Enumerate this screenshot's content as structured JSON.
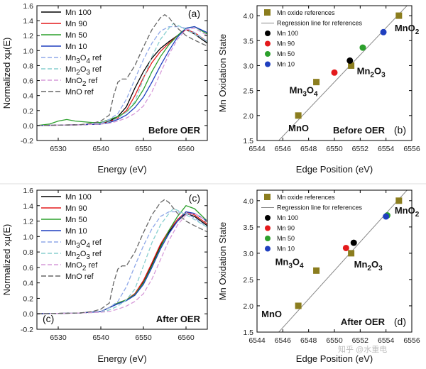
{
  "figure": {
    "watermark": "知乎 @水重电"
  },
  "chart_data": [
    {
      "id": "a",
      "type": "line",
      "panel_label": "(a)",
      "corner_label": "Before OER",
      "xlabel": "Energy (eV)",
      "ylabel": "Normalized xμ(E)",
      "xlim": [
        6525,
        6565
      ],
      "ylim": [
        -0.2,
        1.6
      ],
      "xticks": [
        "6530",
        "6540",
        "6550",
        "6560"
      ],
      "xtick_values": [
        6530,
        6540,
        6550,
        6560
      ],
      "yticks": [
        "-0.2",
        "0.0",
        "0.2",
        "0.4",
        "0.6",
        "0.8",
        "1.0",
        "1.2",
        "1.4",
        "1.6"
      ],
      "ytick_values": [
        -0.2,
        0,
        0.2,
        0.4,
        0.6,
        0.8,
        1.0,
        1.2,
        1.4,
        1.6
      ],
      "legend_position": "top-left",
      "series": [
        {
          "name": "Mn 100",
          "color": "#000000",
          "dash": "",
          "x": [
            6525,
            6535,
            6540,
            6542,
            6544,
            6546,
            6548,
            6550,
            6552,
            6554,
            6556,
            6558,
            6559,
            6560,
            6562,
            6565
          ],
          "y": [
            0,
            0.01,
            0.02,
            0.06,
            0.12,
            0.25,
            0.5,
            0.72,
            0.9,
            1.03,
            1.12,
            1.2,
            1.25,
            1.28,
            1.22,
            1.1
          ]
        },
        {
          "name": "Mn 90",
          "color": "#e41a1c",
          "dash": "",
          "x": [
            6525,
            6535,
            6540,
            6542,
            6544,
            6546,
            6548,
            6550,
            6552,
            6554,
            6556,
            6558,
            6559,
            6560,
            6562,
            6565
          ],
          "y": [
            0,
            0.01,
            0.02,
            0.05,
            0.1,
            0.2,
            0.4,
            0.64,
            0.84,
            0.99,
            1.1,
            1.2,
            1.24,
            1.28,
            1.24,
            1.12
          ]
        },
        {
          "name": "Mn 50",
          "color": "#2ca02c",
          "dash": "",
          "x": [
            6525,
            6528,
            6530,
            6532,
            6534,
            6538,
            6540,
            6542,
            6544,
            6546,
            6548,
            6550,
            6552,
            6554,
            6556,
            6558,
            6560,
            6562,
            6565
          ],
          "y": [
            0,
            0.02,
            0.06,
            0.08,
            0.06,
            0.04,
            0.04,
            0.08,
            0.12,
            0.18,
            0.3,
            0.48,
            0.72,
            0.92,
            1.08,
            1.2,
            1.3,
            1.32,
            1.22
          ]
        },
        {
          "name": "Mn 10",
          "color": "#1f3fbf",
          "dash": "",
          "x": [
            6525,
            6535,
            6540,
            6542,
            6544,
            6546,
            6548,
            6550,
            6552,
            6554,
            6556,
            6558,
            6560,
            6562,
            6565
          ],
          "y": [
            0,
            0.01,
            0.02,
            0.04,
            0.08,
            0.14,
            0.24,
            0.38,
            0.58,
            0.8,
            1.0,
            1.18,
            1.3,
            1.32,
            1.24
          ]
        },
        {
          "name": "Mn3O4 ref",
          "color": "#8fa8e8",
          "dash": "6,3",
          "x": [
            6525,
            6535,
            6540,
            6542,
            6544,
            6546,
            6548,
            6550,
            6552,
            6554,
            6556,
            6558,
            6560,
            6562,
            6565
          ],
          "y": [
            0,
            0.01,
            0.03,
            0.08,
            0.16,
            0.35,
            0.62,
            0.88,
            1.1,
            1.26,
            1.32,
            1.32,
            1.3,
            1.24,
            1.12
          ]
        },
        {
          "name": "Mn2O3 ref",
          "color": "#88cfcf",
          "dash": "6,3",
          "x": [
            6525,
            6535,
            6540,
            6542,
            6544,
            6546,
            6548,
            6550,
            6552,
            6554,
            6556,
            6557,
            6558,
            6560,
            6562,
            6565
          ],
          "y": [
            0,
            0.01,
            0.02,
            0.05,
            0.1,
            0.18,
            0.32,
            0.62,
            0.92,
            1.15,
            1.3,
            1.36,
            1.34,
            1.28,
            1.22,
            1.12
          ]
        },
        {
          "name": "MnO2 ref",
          "color": "#d69ad9",
          "dash": "6,3",
          "x": [
            6525,
            6535,
            6540,
            6542,
            6544,
            6546,
            6548,
            6550,
            6552,
            6554,
            6556,
            6558,
            6560,
            6562,
            6565
          ],
          "y": [
            0,
            0.01,
            0.02,
            0.03,
            0.06,
            0.1,
            0.16,
            0.26,
            0.45,
            0.7,
            0.95,
            1.15,
            1.28,
            1.3,
            1.2
          ]
        },
        {
          "name": "MnO ref",
          "color": "#666666",
          "dash": "7,3",
          "x": [
            6525,
            6535,
            6538,
            6540,
            6542,
            6543,
            6544,
            6545,
            6546,
            6548,
            6550,
            6552,
            6554,
            6555,
            6556,
            6558,
            6560,
            6562,
            6565
          ],
          "y": [
            0,
            0.01,
            0.03,
            0.06,
            0.14,
            0.4,
            0.58,
            0.62,
            0.62,
            0.8,
            1.05,
            1.28,
            1.44,
            1.48,
            1.44,
            1.3,
            1.2,
            1.14,
            1.06
          ]
        }
      ]
    },
    {
      "id": "b",
      "type": "scatter",
      "panel_label": "(b)",
      "corner_label": "Before OER",
      "xlabel": "Edge Position (eV)",
      "ylabel": "Mn Oxidation State",
      "xlim": [
        6544,
        6556
      ],
      "ylim": [
        1.5,
        4.2
      ],
      "xticks": [
        "6544",
        "6546",
        "6548",
        "6550",
        "6552",
        "6554",
        "6556"
      ],
      "xtick_values": [
        6544,
        6546,
        6548,
        6550,
        6552,
        6554,
        6556
      ],
      "yticks": [
        "1.5",
        "2.0",
        "2.5",
        "3.0",
        "3.5",
        "4.0"
      ],
      "ytick_values": [
        1.5,
        2.0,
        2.5,
        3.0,
        3.5,
        4.0
      ],
      "legend_position": "top-left",
      "legend": [
        "Mn oxide references",
        "Regression line for references",
        "Mn 100",
        "Mn 90",
        "Mn 50",
        "Mn 10"
      ],
      "regression_line": {
        "x": [
          6545.5,
          6556
        ],
        "y": [
          1.45,
          4.3
        ]
      },
      "references": [
        {
          "name": "MnO",
          "x": 6547.2,
          "y": 2.0,
          "label": "MnO"
        },
        {
          "name": "Mn3O4",
          "x": 6548.6,
          "y": 2.67,
          "label": "Mn3O4"
        },
        {
          "name": "Mn2O3",
          "x": 6551.3,
          "y": 3.0,
          "label": "Mn2O3"
        },
        {
          "name": "MnO2",
          "x": 6555.0,
          "y": 4.0,
          "label": "MnO2"
        }
      ],
      "samples": [
        {
          "name": "Mn 100",
          "x": 6551.2,
          "y": 3.1,
          "color": "#000000"
        },
        {
          "name": "Mn 90",
          "x": 6550.0,
          "y": 2.86,
          "color": "#e41a1c"
        },
        {
          "name": "Mn 50",
          "x": 6552.2,
          "y": 3.36,
          "color": "#2ca02c"
        },
        {
          "name": "Mn 10",
          "x": 6553.8,
          "y": 3.67,
          "color": "#1f3fbf"
        }
      ],
      "ref_color": "#8b7d1e"
    },
    {
      "id": "c",
      "type": "line",
      "panel_label": "(c)",
      "corner_label": "After OER",
      "xlabel": "Energy (eV)",
      "ylabel": "Normalized xμ(E)",
      "xlim": [
        6525,
        6565
      ],
      "ylim": [
        -0.2,
        1.6
      ],
      "xticks": [
        "6530",
        "6540",
        "6550",
        "6560"
      ],
      "xtick_values": [
        6530,
        6540,
        6550,
        6560
      ],
      "yticks": [
        "-0.2",
        "0.0",
        "0.2",
        "0.4",
        "0.6",
        "0.8",
        "1.0",
        "1.2",
        "1.4",
        "1.6"
      ],
      "ytick_values": [
        -0.2,
        0,
        0.2,
        0.4,
        0.6,
        0.8,
        1.0,
        1.2,
        1.4,
        1.6
      ],
      "legend_position": "top-left",
      "series": [
        {
          "name": "Mn 100",
          "color": "#000000",
          "dash": "",
          "x": [
            6525,
            6535,
            6540,
            6542,
            6544,
            6546,
            6548,
            6550,
            6552,
            6554,
            6556,
            6558,
            6560,
            6562,
            6565
          ],
          "y": [
            0,
            0.01,
            0.03,
            0.08,
            0.14,
            0.18,
            0.26,
            0.42,
            0.64,
            0.88,
            1.06,
            1.2,
            1.3,
            1.26,
            1.14
          ]
        },
        {
          "name": "Mn 90",
          "color": "#e41a1c",
          "dash": "",
          "x": [
            6525,
            6535,
            6540,
            6542,
            6544,
            6546,
            6548,
            6550,
            6552,
            6554,
            6556,
            6558,
            6560,
            6562,
            6565
          ],
          "y": [
            0,
            0.01,
            0.03,
            0.08,
            0.14,
            0.18,
            0.26,
            0.43,
            0.66,
            0.9,
            1.08,
            1.22,
            1.32,
            1.28,
            1.16
          ]
        },
        {
          "name": "Mn 50",
          "color": "#2ca02c",
          "dash": "",
          "x": [
            6525,
            6535,
            6540,
            6542,
            6544,
            6546,
            6548,
            6550,
            6552,
            6554,
            6556,
            6558,
            6560,
            6562,
            6565
          ],
          "y": [
            0,
            0.01,
            0.03,
            0.08,
            0.14,
            0.18,
            0.25,
            0.4,
            0.62,
            0.86,
            1.08,
            1.26,
            1.4,
            1.36,
            1.2
          ]
        },
        {
          "name": "Mn 10",
          "color": "#1f3fbf",
          "dash": "",
          "x": [
            6525,
            6535,
            6540,
            6542,
            6544,
            6546,
            6548,
            6550,
            6552,
            6554,
            6556,
            6558,
            6560,
            6562,
            6565
          ],
          "y": [
            0,
            0.01,
            0.03,
            0.08,
            0.13,
            0.17,
            0.24,
            0.38,
            0.6,
            0.84,
            1.04,
            1.2,
            1.32,
            1.3,
            1.2
          ]
        },
        {
          "name": "Mn3O4 ref",
          "color": "#8fa8e8",
          "dash": "6,3",
          "x": [
            6525,
            6535,
            6540,
            6542,
            6544,
            6546,
            6548,
            6550,
            6552,
            6554,
            6556,
            6558,
            6560,
            6562,
            6565
          ],
          "y": [
            0,
            0.01,
            0.03,
            0.08,
            0.16,
            0.35,
            0.62,
            0.88,
            1.1,
            1.26,
            1.32,
            1.32,
            1.3,
            1.24,
            1.12
          ]
        },
        {
          "name": "Mn2O3 ref",
          "color": "#88cfcf",
          "dash": "6,3",
          "x": [
            6525,
            6535,
            6540,
            6542,
            6544,
            6546,
            6548,
            6550,
            6552,
            6554,
            6556,
            6557,
            6558,
            6560,
            6562,
            6565
          ],
          "y": [
            0,
            0.01,
            0.02,
            0.05,
            0.1,
            0.18,
            0.32,
            0.62,
            0.92,
            1.15,
            1.3,
            1.36,
            1.34,
            1.28,
            1.22,
            1.12
          ]
        },
        {
          "name": "MnO2 ref",
          "color": "#d69ad9",
          "dash": "6,3",
          "x": [
            6525,
            6535,
            6540,
            6542,
            6544,
            6546,
            6548,
            6550,
            6552,
            6554,
            6556,
            6558,
            6560,
            6562,
            6565
          ],
          "y": [
            0,
            0.01,
            0.02,
            0.03,
            0.06,
            0.1,
            0.16,
            0.26,
            0.45,
            0.7,
            0.95,
            1.15,
            1.28,
            1.3,
            1.2
          ]
        },
        {
          "name": "MnO ref",
          "color": "#666666",
          "dash": "7,3",
          "x": [
            6525,
            6535,
            6538,
            6540,
            6542,
            6543,
            6544,
            6545,
            6546,
            6548,
            6550,
            6552,
            6554,
            6555,
            6556,
            6558,
            6560,
            6562,
            6565
          ],
          "y": [
            0,
            0.01,
            0.03,
            0.06,
            0.14,
            0.4,
            0.58,
            0.62,
            0.62,
            0.8,
            1.05,
            1.28,
            1.44,
            1.48,
            1.44,
            1.3,
            1.2,
            1.14,
            1.06
          ]
        }
      ]
    },
    {
      "id": "d",
      "type": "scatter",
      "panel_label": "(d)",
      "corner_label": "After OER",
      "xlabel": "Edge Position (eV)",
      "ylabel": "Mn Oxidation State",
      "xlim": [
        6544,
        6556
      ],
      "ylim": [
        1.5,
        4.2
      ],
      "xticks": [
        "6544",
        "6546",
        "6548",
        "6550",
        "6552",
        "6554",
        "6556"
      ],
      "xtick_values": [
        6544,
        6546,
        6548,
        6550,
        6552,
        6554,
        6556
      ],
      "yticks": [
        "1.5",
        "2.0",
        "2.5",
        "3.0",
        "3.5",
        "4.0"
      ],
      "ytick_values": [
        1.5,
        2.0,
        2.5,
        3.0,
        3.5,
        4.0
      ],
      "legend_position": "top-left",
      "legend": [
        "Mn oxide references",
        "Regression line for references",
        "Mn 100",
        "Mn 90",
        "Mn 50",
        "Mn 10"
      ],
      "regression_line": {
        "x": [
          6545.5,
          6556
        ],
        "y": [
          1.45,
          4.3
        ]
      },
      "references": [
        {
          "name": "MnO",
          "x": 6547.2,
          "y": 2.0,
          "label": "MnO"
        },
        {
          "name": "Mn3O4",
          "x": 6548.6,
          "y": 2.67,
          "label": "Mn3O4"
        },
        {
          "name": "Mn2O3",
          "x": 6551.3,
          "y": 3.0,
          "label": "Mn2O3"
        },
        {
          "name": "MnO2",
          "x": 6555.0,
          "y": 4.0,
          "label": "MnO2"
        }
      ],
      "samples": [
        {
          "name": "Mn 100",
          "x": 6551.5,
          "y": 3.2,
          "color": "#000000"
        },
        {
          "name": "Mn 90",
          "x": 6550.9,
          "y": 3.1,
          "color": "#e41a1c"
        },
        {
          "name": "Mn 50",
          "x": 6554.1,
          "y": 3.72,
          "color": "#2ca02c"
        },
        {
          "name": "Mn 10",
          "x": 6554.0,
          "y": 3.7,
          "color": "#1f3fbf"
        }
      ],
      "ref_color": "#8b7d1e"
    }
  ]
}
